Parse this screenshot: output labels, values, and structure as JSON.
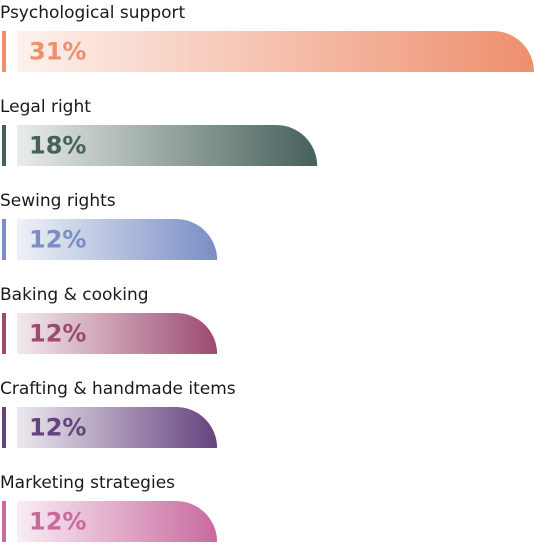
{
  "chart_data": {
    "type": "bar",
    "orientation": "horizontal",
    "categories": [
      "Psychological support",
      "Legal right",
      "Sewing rights",
      "Baking & cooking",
      "Crafting & handmade items",
      "Marketing strategies"
    ],
    "values": [
      31,
      18,
      12,
      12,
      12,
      12
    ],
    "value_labels": [
      "31%",
      "18%",
      "12%",
      "12%",
      "12%",
      "12%"
    ],
    "colors": [
      "#ee8f6d",
      "#46605a",
      "#7a8ec4",
      "#9c4a6f",
      "#64437e",
      "#c96a9f"
    ]
  }
}
